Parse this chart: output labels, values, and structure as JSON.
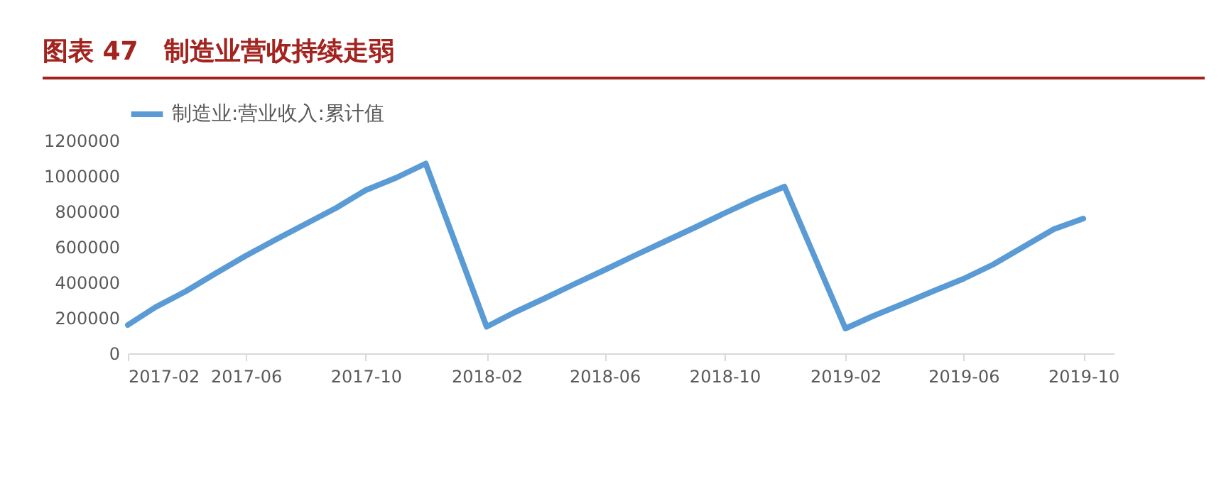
{
  "chart_data": {
    "type": "line",
    "title": "图表 47　制造业营收持续走弱",
    "x": [
      "2017-02",
      "2017-03",
      "2017-04",
      "2017-05",
      "2017-06",
      "2017-07",
      "2017-08",
      "2017-09",
      "2017-10",
      "2017-11",
      "2017-12",
      "2018-02",
      "2018-03",
      "2018-04",
      "2018-05",
      "2018-06",
      "2018-07",
      "2018-08",
      "2018-09",
      "2018-10",
      "2018-11",
      "2018-12",
      "2019-02",
      "2019-03",
      "2019-04",
      "2019-05",
      "2019-06",
      "2019-07",
      "2019-08",
      "2019-09",
      "2019-10"
    ],
    "series": [
      {
        "name": "制造业:营业收入:累计值",
        "color": "#5b9bd5",
        "values": [
          160000,
          260000,
          350000,
          450000,
          550000,
          640000,
          730000,
          820000,
          920000,
          990000,
          1070000,
          150000,
          230000,
          310000,
          390000,
          470000,
          550000,
          630000,
          710000,
          790000,
          870000,
          940000,
          140000,
          210000,
          280000,
          350000,
          420000,
          500000,
          600000,
          700000,
          760000
        ]
      }
    ],
    "xlim": [
      "2017-02",
      "2019-11"
    ],
    "xticks": [
      "2017-02",
      "2017-06",
      "2017-10",
      "2018-02",
      "2018-06",
      "2018-10",
      "2019-02",
      "2019-06",
      "2019-10"
    ],
    "ylim": [
      0,
      1200000
    ],
    "yticks": [
      0,
      200000,
      400000,
      600000,
      800000,
      1000000,
      1200000
    ],
    "grid": false,
    "legend": "top",
    "marker": "none",
    "line_style": "solid"
  }
}
